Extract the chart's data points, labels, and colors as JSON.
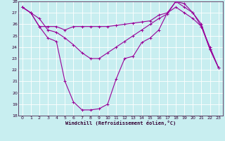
{
  "title": "",
  "xlabel": "Windchill (Refroidissement éolien,°C)",
  "bg_color": "#c8eef0",
  "line_color": "#990099",
  "grid_color": "#ffffff",
  "xlim": [
    -0.5,
    23.5
  ],
  "ylim": [
    18,
    28
  ],
  "xticks": [
    0,
    1,
    2,
    3,
    4,
    5,
    6,
    7,
    8,
    9,
    10,
    11,
    12,
    13,
    14,
    15,
    16,
    17,
    18,
    19,
    20,
    21,
    22,
    23
  ],
  "yticks": [
    18,
    19,
    20,
    21,
    22,
    23,
    24,
    25,
    26,
    27,
    28
  ],
  "line1_x": [
    0,
    1,
    2,
    3,
    4,
    5,
    6,
    7,
    8,
    9,
    10,
    11,
    12,
    13,
    14,
    15,
    16,
    17,
    18,
    19,
    20,
    21,
    22,
    23
  ],
  "line1_y": [
    27.5,
    27.0,
    25.8,
    25.8,
    25.8,
    25.5,
    25.8,
    25.8,
    25.8,
    25.8,
    25.8,
    25.9,
    26.0,
    26.1,
    26.2,
    26.3,
    26.8,
    27.0,
    27.5,
    27.0,
    26.5,
    25.8,
    24.0,
    22.2
  ],
  "line2_x": [
    0,
    1,
    2,
    3,
    4,
    5,
    6,
    7,
    8,
    9,
    10,
    11,
    12,
    13,
    14,
    15,
    16,
    17,
    18,
    19,
    20,
    21,
    22,
    23
  ],
  "line2_y": [
    27.5,
    27.0,
    26.5,
    25.5,
    25.3,
    24.8,
    24.2,
    23.5,
    23.0,
    23.0,
    23.5,
    24.0,
    24.5,
    25.0,
    25.5,
    26.0,
    26.5,
    26.9,
    28.0,
    27.8,
    27.0,
    26.0,
    23.8,
    22.2
  ],
  "line3_x": [
    0,
    1,
    2,
    3,
    4,
    5,
    6,
    7,
    8,
    9,
    10,
    11,
    12,
    13,
    14,
    15,
    16,
    17,
    18,
    19,
    20,
    21,
    22,
    23
  ],
  "line3_y": [
    27.5,
    27.0,
    25.8,
    24.8,
    24.5,
    21.0,
    19.2,
    18.5,
    18.5,
    18.6,
    19.0,
    21.2,
    23.0,
    23.2,
    24.4,
    24.8,
    25.5,
    27.0,
    28.0,
    27.5,
    27.0,
    25.8,
    23.8,
    22.2
  ]
}
